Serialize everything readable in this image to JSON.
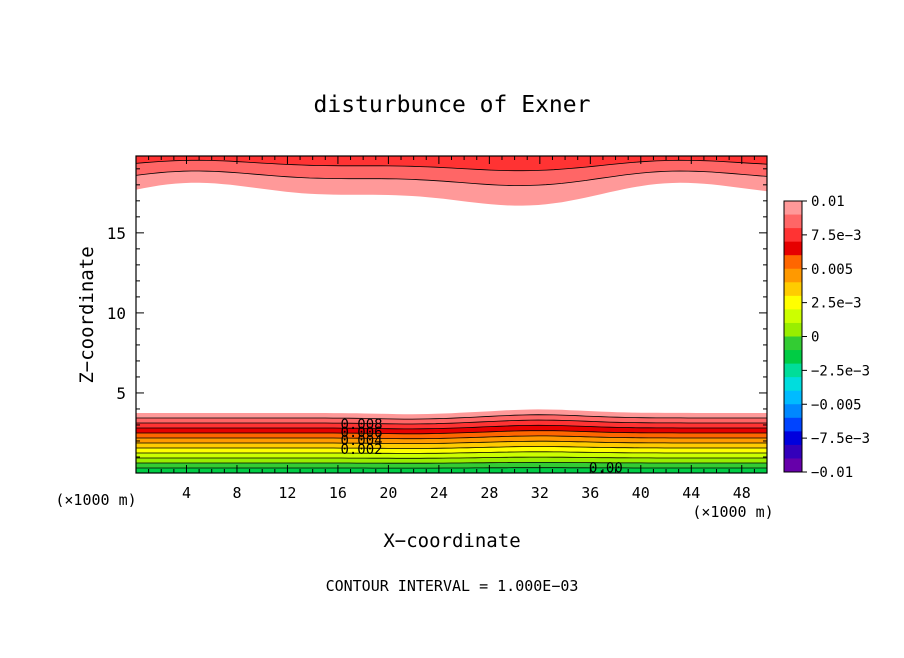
{
  "chart_data": {
    "type": "contour",
    "title": "disturbunce of Exner",
    "xlabel": "X−coordinate",
    "ylabel": "Z−coordinate",
    "x_unit_left": "(×1000 m)",
    "x_unit_right": "(×1000 m)",
    "xlim": [
      0,
      50
    ],
    "ylim": [
      0,
      19.8
    ],
    "x_ticks": [
      4,
      8,
      12,
      16,
      20,
      24,
      28,
      32,
      36,
      40,
      44,
      48
    ],
    "y_ticks": [
      5,
      10,
      15
    ],
    "footer": "CONTOUR INTERVAL = 1.000E−03",
    "colorbar": {
      "labels": [
        "0.01",
        "7.5e−3",
        "0.005",
        "2.5e−3",
        "0",
        "−2.5e−3",
        "−0.005",
        "−7.5e−3",
        "−0.01"
      ],
      "values": [
        0.01,
        0.0075,
        0.005,
        0.0025,
        0,
        -0.0025,
        -0.005,
        -0.0075,
        -0.01
      ],
      "colors": [
        "#ff9999",
        "#ff6666",
        "#ff3333",
        "#e60000",
        "#ff6600",
        "#ff9900",
        "#ffcc00",
        "#ffff00",
        "#ccff00",
        "#99ee00",
        "#33cc33",
        "#00cc44",
        "#00dd99",
        "#00dddd",
        "#00bbff",
        "#0088ff",
        "#0044ff",
        "#0000dd",
        "#3300bb",
        "#6600aa"
      ]
    },
    "contour_labels": [
      "0.008",
      "0.006",
      "0.004",
      "0.002",
      "0.00"
    ],
    "lower_band": {
      "levels": [
        0.0,
        0.001,
        0.002,
        0.003,
        0.004,
        0.005,
        0.006,
        0.007,
        0.008,
        0.009,
        0.01
      ],
      "colors": [
        "#00cc44",
        "#33cc33",
        "#99ee00",
        "#ccff00",
        "#ffff00",
        "#ffcc00",
        "#ff9900",
        "#ff6600",
        "#e60000",
        "#ff3333",
        "#ff6666",
        "#ff9999"
      ]
    },
    "upper_band": {
      "colors": [
        "#ff9999",
        "#ff6666",
        "#ff3333"
      ]
    }
  }
}
